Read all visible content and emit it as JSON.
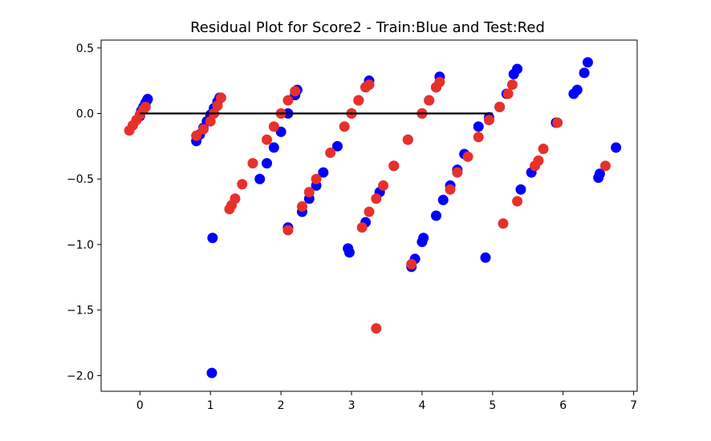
{
  "chart_data": {
    "type": "scatter",
    "title": "Residual Plot for Score2 - Train:Blue and Test:Red",
    "xlabel": "",
    "ylabel": "",
    "xlim": [
      -0.55,
      7.05
    ],
    "ylim": [
      -2.12,
      0.56
    ],
    "xticks": [
      0,
      1,
      2,
      3,
      4,
      5,
      6,
      7
    ],
    "xtick_labels": [
      "0",
      "1",
      "2",
      "3",
      "4",
      "5",
      "6",
      "7"
    ],
    "yticks": [
      0.5,
      0.0,
      -0.5,
      -1.0,
      -1.5,
      -2.0
    ],
    "ytick_labels": [
      "0.5",
      "0.0",
      "−0.5",
      "−1.0",
      "−1.5",
      "−2.0"
    ],
    "grid": false,
    "legend": "none",
    "hline": {
      "y": 0.0,
      "x": [
        0,
        5
      ],
      "color": "#000000"
    },
    "series": [
      {
        "color": "#0000ff",
        "points": [
          [
            0.0,
            -0.02
          ],
          [
            0.02,
            0.02
          ],
          [
            0.05,
            0.05
          ],
          [
            0.08,
            0.08
          ],
          [
            0.1,
            0.1
          ],
          [
            0.11,
            0.11
          ],
          [
            0.8,
            -0.21
          ],
          [
            0.85,
            -0.16
          ],
          [
            0.9,
            -0.11
          ],
          [
            0.95,
            -0.06
          ],
          [
            1.0,
            -0.01
          ],
          [
            1.05,
            0.04
          ],
          [
            1.1,
            0.09
          ],
          [
            1.13,
            0.12
          ],
          [
            1.03,
            -0.95
          ],
          [
            1.02,
            -1.98
          ],
          [
            1.7,
            -0.5
          ],
          [
            1.8,
            -0.38
          ],
          [
            1.9,
            -0.26
          ],
          [
            2.0,
            -0.14
          ],
          [
            2.1,
            0.0
          ],
          [
            2.2,
            0.14
          ],
          [
            2.23,
            0.18
          ],
          [
            2.1,
            -0.87
          ],
          [
            2.3,
            -0.75
          ],
          [
            2.4,
            -0.65
          ],
          [
            2.5,
            -0.55
          ],
          [
            2.6,
            -0.45
          ],
          [
            2.8,
            -0.25
          ],
          [
            3.0,
            0.0
          ],
          [
            3.1,
            0.1
          ],
          [
            3.2,
            0.2
          ],
          [
            3.25,
            0.25
          ],
          [
            2.95,
            -1.03
          ],
          [
            2.97,
            -1.06
          ],
          [
            3.2,
            -0.83
          ],
          [
            3.4,
            -0.6
          ],
          [
            3.6,
            -0.4
          ],
          [
            3.8,
            -0.2
          ],
          [
            4.0,
            0.0
          ],
          [
            4.1,
            0.1
          ],
          [
            4.2,
            0.2
          ],
          [
            4.25,
            0.28
          ],
          [
            3.85,
            -1.17
          ],
          [
            3.9,
            -1.11
          ],
          [
            4.0,
            -0.98
          ],
          [
            4.02,
            -0.95
          ],
          [
            4.2,
            -0.78
          ],
          [
            4.3,
            -0.66
          ],
          [
            4.4,
            -0.55
          ],
          [
            4.5,
            -0.43
          ],
          [
            4.6,
            -0.31
          ],
          [
            4.8,
            -0.1
          ],
          [
            4.95,
            -0.03
          ],
          [
            5.1,
            0.05
          ],
          [
            5.2,
            0.15
          ],
          [
            5.3,
            0.3
          ],
          [
            5.35,
            0.34
          ],
          [
            4.9,
            -1.1
          ],
          [
            5.55,
            -0.45
          ],
          [
            5.4,
            -0.58
          ],
          [
            5.9,
            -0.07
          ],
          [
            6.15,
            0.15
          ],
          [
            6.2,
            0.18
          ],
          [
            6.3,
            0.31
          ],
          [
            6.35,
            0.39
          ],
          [
            6.5,
            -0.49
          ],
          [
            6.52,
            -0.46
          ],
          [
            6.75,
            -0.26
          ]
        ]
      },
      {
        "color": "#e8302a",
        "points": [
          [
            -0.15,
            -0.13
          ],
          [
            -0.1,
            -0.09
          ],
          [
            -0.05,
            -0.05
          ],
          [
            0.0,
            -0.01
          ],
          [
            0.05,
            0.03
          ],
          [
            0.08,
            0.05
          ],
          [
            0.8,
            -0.17
          ],
          [
            0.9,
            -0.12
          ],
          [
            1.0,
            -0.06
          ],
          [
            1.05,
            0.0
          ],
          [
            1.1,
            0.06
          ],
          [
            1.15,
            0.12
          ],
          [
            1.27,
            -0.73
          ],
          [
            1.3,
            -0.7
          ],
          [
            1.35,
            -0.65
          ],
          [
            1.45,
            -0.54
          ],
          [
            1.6,
            -0.38
          ],
          [
            1.8,
            -0.2
          ],
          [
            1.9,
            -0.1
          ],
          [
            2.0,
            0.0
          ],
          [
            2.1,
            0.1
          ],
          [
            2.2,
            0.17
          ],
          [
            2.1,
            -0.89
          ],
          [
            2.3,
            -0.71
          ],
          [
            2.4,
            -0.6
          ],
          [
            2.5,
            -0.5
          ],
          [
            2.7,
            -0.3
          ],
          [
            2.9,
            -0.1
          ],
          [
            3.0,
            0.0
          ],
          [
            3.1,
            0.1
          ],
          [
            3.2,
            0.2
          ],
          [
            3.25,
            0.22
          ],
          [
            3.15,
            -0.87
          ],
          [
            3.25,
            -0.75
          ],
          [
            3.35,
            -0.65
          ],
          [
            3.45,
            -0.55
          ],
          [
            3.6,
            -0.4
          ],
          [
            3.8,
            -0.2
          ],
          [
            4.0,
            0.0
          ],
          [
            4.1,
            0.1
          ],
          [
            4.2,
            0.2
          ],
          [
            4.25,
            0.24
          ],
          [
            3.35,
            -1.64
          ],
          [
            3.85,
            -1.15
          ],
          [
            4.4,
            -0.58
          ],
          [
            4.5,
            -0.45
          ],
          [
            4.65,
            -0.33
          ],
          [
            4.8,
            -0.18
          ],
          [
            4.95,
            -0.05
          ],
          [
            5.1,
            0.05
          ],
          [
            5.22,
            0.15
          ],
          [
            5.28,
            0.22
          ],
          [
            5.15,
            -0.84
          ],
          [
            5.35,
            -0.67
          ],
          [
            5.6,
            -0.4
          ],
          [
            5.65,
            -0.36
          ],
          [
            5.72,
            -0.27
          ],
          [
            5.92,
            -0.07
          ],
          [
            6.6,
            -0.4
          ]
        ]
      }
    ]
  }
}
